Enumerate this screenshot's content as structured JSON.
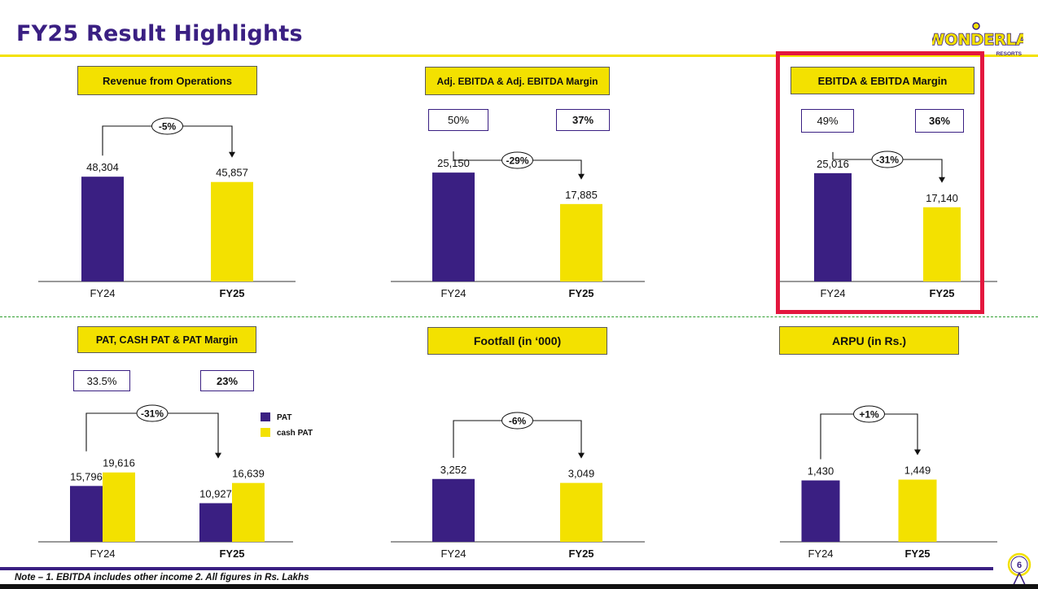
{
  "header": {
    "title": "FY25 Result Highlights",
    "logo_text": "WONDERLA",
    "logo_subtext": "RESORTS"
  },
  "footer": {
    "note": "Note – 1. EBITDA includes other income   2. All figures in Rs. Lakhs",
    "page": "6"
  },
  "colors": {
    "fy24": "#3a1f82",
    "fy25": "#f3e100",
    "accent_box": "#e3173e",
    "change_line": "#111111"
  },
  "chart_data": [
    {
      "id": "revenue",
      "type": "bar",
      "title": "Revenue from Operations",
      "categories": [
        "FY24",
        "FY25"
      ],
      "values": [
        48304,
        45857
      ],
      "value_labels": [
        "48,304",
        "45,857"
      ],
      "change": "-5%",
      "ylim": [
        0,
        60000
      ]
    },
    {
      "id": "adj-ebitda",
      "type": "bar",
      "title": "Adj. EBITDA  & Adj. EBITDA Margin",
      "categories": [
        "FY24",
        "FY25"
      ],
      "values": [
        25150,
        17885
      ],
      "value_labels": [
        "25,150",
        "17,885"
      ],
      "margins": [
        "50%",
        "37%"
      ],
      "change": "-29%",
      "ylim": [
        0,
        31000
      ]
    },
    {
      "id": "ebitda",
      "type": "bar",
      "title": "EBITDA  & EBITDA Margin",
      "categories": [
        "FY24",
        "FY25"
      ],
      "values": [
        25016,
        17140
      ],
      "value_labels": [
        "25,016",
        "17,140"
      ],
      "margins": [
        "49%",
        "36%"
      ],
      "change": "-31%",
      "ylim": [
        0,
        31000
      ]
    },
    {
      "id": "pat",
      "type": "bar",
      "title": "PAT, CASH PAT & PAT Margin",
      "categories": [
        "FY24",
        "FY25"
      ],
      "series": [
        {
          "name": "PAT",
          "values": [
            15796,
            10927
          ],
          "value_labels": [
            "15,796",
            "10,927"
          ]
        },
        {
          "name": "cash PAT",
          "values": [
            19616,
            16639
          ],
          "value_labels": [
            "19,616",
            "16,639"
          ]
        }
      ],
      "margins": [
        "33.5%",
        "23%"
      ],
      "change": "-31%",
      "ylim": [
        0,
        26000
      ]
    },
    {
      "id": "footfall",
      "type": "bar",
      "title": "Footfall (in ‘000)",
      "categories": [
        "FY24",
        "FY25"
      ],
      "values": [
        3252,
        3049
      ],
      "value_labels": [
        "3,252",
        "3,049"
      ],
      "change": "-6%",
      "ylim": [
        0,
        4000
      ]
    },
    {
      "id": "arpu",
      "type": "bar",
      "title": "ARPU (in Rs.)",
      "categories": [
        "FY24",
        "FY25"
      ],
      "values": [
        1430,
        1449
      ],
      "value_labels": [
        "1,430",
        "1,449"
      ],
      "change": "+1%",
      "ylim": [
        0,
        1800
      ]
    }
  ]
}
